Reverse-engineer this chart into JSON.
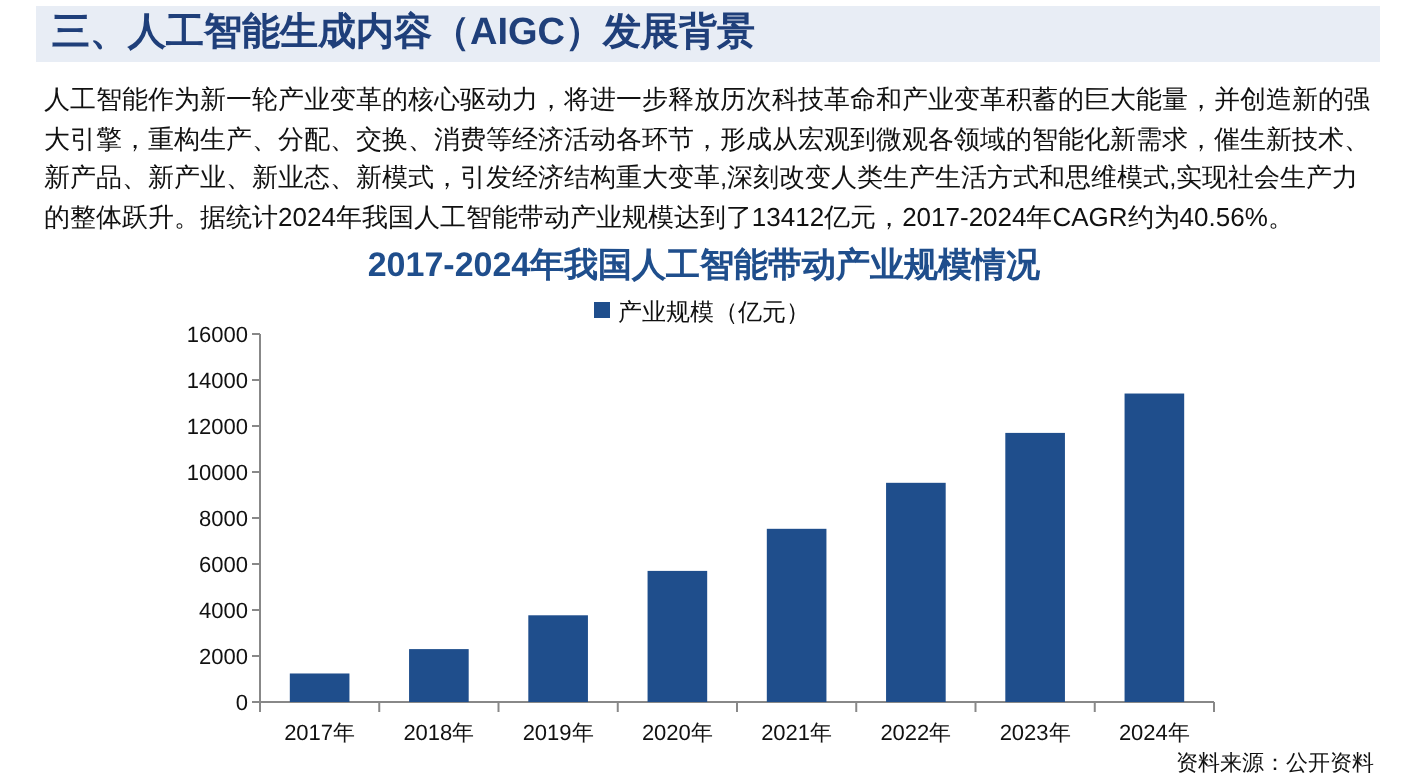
{
  "chart_data": {
    "type": "bar",
    "title": "2017-2024年我国人工智能带动产业规模情况",
    "annotations": [
      "三、人工智能生成内容（AIGC）发展背景",
      "人工智能作为新一轮产业变革的核心驱动力，将进一步释放历次科技革命和产业变革积蓄的巨大能量，并创造新的强大引擎，重构生产、分配、交换、消费等经济活动各环节，形成从宏观到微观各领域的智能化新需求，催生新技术、新产品、新产业、新业态、新模式，引发经济结构重大变革,深刻改变人类生产生活方式和思维模式,实现社会生产力的整体跃升。据统计2024年我国人工智能带动产业规模达到了13412亿元，2017-2024年CAGR约为40.56%。",
      "资料来源：公开资料"
    ],
    "categories": [
      "2017年",
      "2018年",
      "2019年",
      "2020年",
      "2021年",
      "2022年",
      "2023年",
      "2024年"
    ],
    "series": [
      {
        "name": "产业规模（亿元）",
        "color": "#1f4e8c",
        "values": [
          1240,
          2300,
          3770,
          5700,
          7530,
          9530,
          11700,
          13412
        ]
      }
    ],
    "ylim": [
      0,
      16000
    ],
    "yticks": [
      0,
      2000,
      4000,
      6000,
      8000,
      10000,
      12000,
      14000,
      16000
    ],
    "grid": false,
    "legend": "top"
  }
}
